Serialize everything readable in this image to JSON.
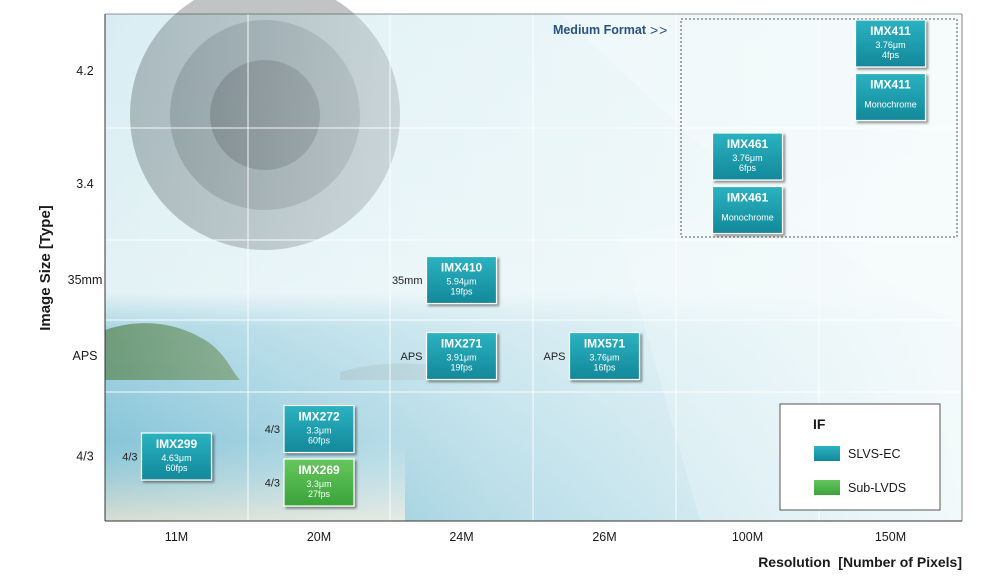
{
  "chart_data": {
    "type": "table",
    "title": "",
    "xlabel": "Resolution  [Number of Pixels]",
    "ylabel": "Image Size [Type]",
    "x_categories": [
      "11M",
      "20M",
      "24M",
      "26M",
      "100M",
      "150M"
    ],
    "y_categories": [
      "4/3",
      "APS",
      "35mm",
      "3.4",
      "4.2"
    ],
    "region": {
      "label": "Medium Format",
      "arrow": ">>",
      "x_from": "100M",
      "x_to": "150M",
      "y_from": "3.4",
      "y_to": "4.2"
    },
    "products": [
      {
        "name": "IMX299",
        "specs": [
          "4.63μm",
          "60fps"
        ],
        "x": "11M",
        "y": "4/3",
        "slot": 0,
        "interface": "SLVS-EC",
        "format": "4/3"
      },
      {
        "name": "IMX272",
        "specs": [
          "3.3μm",
          "60fps"
        ],
        "x": "20M",
        "y": "4/3",
        "slot": -1,
        "interface": "SLVS-EC",
        "format": "4/3"
      },
      {
        "name": "IMX269",
        "specs": [
          "3.3μm",
          "27fps"
        ],
        "x": "20M",
        "y": "4/3",
        "slot": 1,
        "interface": "Sub-LVDS",
        "format": "4/3"
      },
      {
        "name": "IMX410",
        "specs": [
          "5.94μm",
          "19fps"
        ],
        "x": "24M",
        "y": "35mm",
        "slot": 0,
        "interface": "SLVS-EC",
        "format": "35mm"
      },
      {
        "name": "IMX271",
        "specs": [
          "3.91μm",
          "19fps"
        ],
        "x": "24M",
        "y": "APS",
        "slot": 0,
        "interface": "SLVS-EC",
        "format": "APS"
      },
      {
        "name": "IMX571",
        "specs": [
          "3.76μm",
          "16fps"
        ],
        "x": "26M",
        "y": "APS",
        "slot": 0,
        "interface": "SLVS-EC",
        "format": "APS"
      },
      {
        "name": "IMX461",
        "specs": [
          "3.76μm",
          "6fps"
        ],
        "x": "100M",
        "y": "3.4",
        "slot": -1,
        "interface": "SLVS-EC",
        "format": ""
      },
      {
        "name": "IMX461",
        "specs": [
          "Monochrome"
        ],
        "x": "100M",
        "y": "3.4",
        "slot": 1,
        "interface": "SLVS-EC",
        "format": ""
      },
      {
        "name": "IMX411",
        "specs": [
          "3.76μm",
          "4fps"
        ],
        "x": "150M",
        "y": "4.2",
        "slot": -1,
        "interface": "SLVS-EC",
        "format": ""
      },
      {
        "name": "IMX411",
        "specs": [
          "Monochrome"
        ],
        "x": "150M",
        "y": "4.2",
        "slot": 1,
        "interface": "SLVS-EC",
        "format": ""
      }
    ],
    "legend": {
      "title": "IF",
      "position": "bottom-right",
      "entries": [
        {
          "label": "SLVS-EC",
          "color": "#1e9fae"
        },
        {
          "label": "Sub-LVDS",
          "color": "#4fb84e"
        }
      ]
    }
  },
  "colors": {
    "slvs": "#1e9fae",
    "sublvds": "#4fb84e",
    "grid": "#ffffff",
    "axis": "#333333",
    "medium_format": "#2a5183"
  }
}
